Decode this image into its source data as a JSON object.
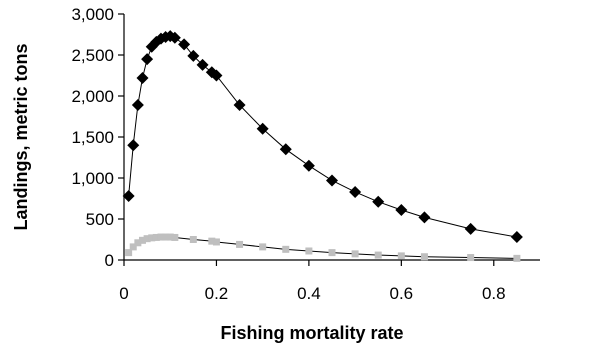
{
  "chart_data": {
    "type": "scatter",
    "title": "",
    "xlabel": "Fishing mortality rate",
    "ylabel": "Landings, metric tons",
    "xlim": [
      0,
      0.9
    ],
    "ylim": [
      0,
      3000
    ],
    "xticks": [
      0,
      0.2,
      0.4,
      0.6,
      0.8
    ],
    "xtick_labels": [
      "0",
      "0.2",
      "0.4",
      "0.6",
      "0.8"
    ],
    "yticks": [
      0,
      500,
      1000,
      1500,
      2000,
      2500,
      3000
    ],
    "ytick_labels": [
      "0",
      "500",
      "1,000",
      "1,500",
      "2,000",
      "2,500",
      "3,000"
    ],
    "grid": false,
    "legend": "none",
    "series": [
      {
        "marker": "diamond",
        "color": "#000000",
        "line": true,
        "x": [
          0.01,
          0.02,
          0.03,
          0.04,
          0.05,
          0.06,
          0.07,
          0.08,
          0.09,
          0.1,
          0.11,
          0.13,
          0.15,
          0.17,
          0.19,
          0.2,
          0.25,
          0.3,
          0.35,
          0.4,
          0.45,
          0.5,
          0.55,
          0.6,
          0.65,
          0.75,
          0.85
        ],
        "y": [
          780,
          1400,
          1890,
          2220,
          2450,
          2600,
          2660,
          2700,
          2720,
          2730,
          2710,
          2630,
          2490,
          2380,
          2290,
          2250,
          1890,
          1600,
          1350,
          1150,
          970,
          830,
          710,
          610,
          520,
          380,
          280
        ]
      },
      {
        "marker": "square",
        "color": "#bfbfbf",
        "line": true,
        "x": [
          0.01,
          0.02,
          0.03,
          0.04,
          0.05,
          0.06,
          0.07,
          0.08,
          0.09,
          0.1,
          0.11,
          0.15,
          0.19,
          0.2,
          0.25,
          0.3,
          0.35,
          0.4,
          0.45,
          0.5,
          0.55,
          0.6,
          0.65,
          0.75,
          0.85
        ],
        "y": [
          90,
          160,
          210,
          240,
          260,
          270,
          275,
          280,
          280,
          280,
          275,
          250,
          230,
          220,
          190,
          160,
          130,
          110,
          90,
          75,
          60,
          50,
          40,
          30,
          20
        ]
      }
    ]
  }
}
